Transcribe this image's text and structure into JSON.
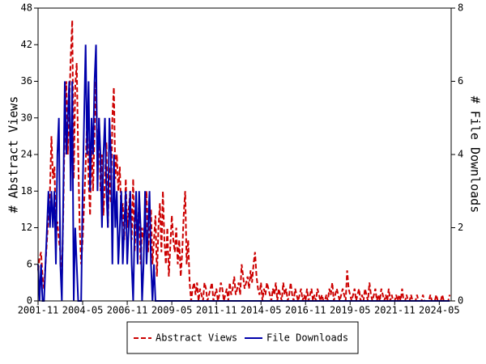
{
  "chart_data": {
    "type": "line",
    "x": [
      "2001-11",
      "2001-12",
      "2002-01",
      "2002-02",
      "2002-03",
      "2002-04",
      "2002-05",
      "2002-06",
      "2002-07",
      "2002-08",
      "2002-09",
      "2002-10",
      "2002-11",
      "2002-12",
      "2003-01",
      "2003-02",
      "2003-03",
      "2003-04",
      "2003-05",
      "2003-06",
      "2003-07",
      "2003-08",
      "2003-09",
      "2003-10",
      "2003-11",
      "2003-12",
      "2004-01",
      "2004-02",
      "2004-03",
      "2004-04",
      "2004-05",
      "2004-06",
      "2004-07",
      "2004-08",
      "2004-09",
      "2004-10",
      "2004-11",
      "2004-12",
      "2005-01",
      "2005-02",
      "2005-03",
      "2005-04",
      "2005-05",
      "2005-06",
      "2005-07",
      "2005-08",
      "2005-09",
      "2005-10",
      "2005-11",
      "2005-12",
      "2006-01",
      "2006-02",
      "2006-03",
      "2006-04",
      "2006-05",
      "2006-06",
      "2006-07",
      "2006-08",
      "2006-09",
      "2006-10",
      "2006-11",
      "2006-12",
      "2007-01",
      "2007-02",
      "2007-03",
      "2007-04",
      "2007-05",
      "2007-06",
      "2007-07",
      "2007-08",
      "2007-09",
      "2007-10",
      "2007-11",
      "2007-12",
      "2008-01",
      "2008-02",
      "2008-03",
      "2008-04",
      "2008-05",
      "2008-06",
      "2008-07",
      "2008-08",
      "2008-09",
      "2008-10",
      "2008-11",
      "2008-12",
      "2009-01",
      "2009-02",
      "2009-03",
      "2009-04",
      "2009-05",
      "2009-06",
      "2009-07",
      "2009-08",
      "2009-09",
      "2009-10",
      "2009-11",
      "2009-12",
      "2010-01",
      "2010-02",
      "2010-03",
      "2010-04",
      "2010-05",
      "2010-06",
      "2010-07",
      "2010-08",
      "2010-09",
      "2010-10",
      "2010-11",
      "2010-12",
      "2011-01",
      "2011-02",
      "2011-03",
      "2011-04",
      "2011-05",
      "2011-06",
      "2011-07",
      "2011-08",
      "2011-09",
      "2011-10",
      "2011-11",
      "2011-12",
      "2012-01",
      "2012-02",
      "2012-03",
      "2012-04",
      "2012-05",
      "2012-06",
      "2012-07",
      "2012-08",
      "2012-09",
      "2012-10",
      "2012-11",
      "2012-12",
      "2013-01",
      "2013-02",
      "2013-03",
      "2013-04",
      "2013-05",
      "2013-06",
      "2013-07",
      "2013-08",
      "2013-09",
      "2013-10",
      "2013-11",
      "2013-12",
      "2014-01",
      "2014-02",
      "2014-03",
      "2014-04",
      "2014-05",
      "2014-06",
      "2014-07",
      "2014-08",
      "2014-09",
      "2014-10",
      "2014-11",
      "2014-12",
      "2015-01",
      "2015-02",
      "2015-03",
      "2015-04",
      "2015-05",
      "2015-06",
      "2015-07",
      "2015-08",
      "2015-09",
      "2015-10",
      "2015-11",
      "2015-12",
      "2016-01",
      "2016-02",
      "2016-03",
      "2016-04",
      "2016-05",
      "2016-06",
      "2016-07",
      "2016-08",
      "2016-09",
      "2016-10",
      "2016-11",
      "2016-12",
      "2017-01",
      "2017-02",
      "2017-03",
      "2017-04",
      "2017-05",
      "2017-06",
      "2017-07",
      "2017-08",
      "2017-09",
      "2017-10",
      "2017-11",
      "2017-12",
      "2018-01",
      "2018-02",
      "2018-03",
      "2018-04",
      "2018-05",
      "2018-06",
      "2018-07",
      "2018-08",
      "2018-09",
      "2018-10",
      "2018-11",
      "2018-12",
      "2019-01",
      "2019-02",
      "2019-03",
      "2019-04",
      "2019-05",
      "2019-06",
      "2019-07",
      "2019-08",
      "2019-09",
      "2019-10",
      "2019-11",
      "2019-12",
      "2020-01",
      "2020-02",
      "2020-03",
      "2020-04",
      "2020-05",
      "2020-06",
      "2020-07",
      "2020-08",
      "2020-09",
      "2020-10",
      "2020-11",
      "2020-12",
      "2021-01",
      "2021-02",
      "2021-03",
      "2021-04",
      "2021-05",
      "2021-06",
      "2021-07",
      "2021-08",
      "2021-09",
      "2021-10",
      "2021-11",
      "2021-12",
      "2022-01",
      "2022-02",
      "2022-03",
      "2022-04",
      "2022-05",
      "2022-06",
      "2022-07",
      "2022-08",
      "2022-09",
      "2022-10",
      "2022-11",
      "2022-12",
      "2023-01",
      "2023-02",
      "2023-03",
      "2023-04",
      "2023-05",
      "2023-06",
      "2023-07",
      "2023-08",
      "2023-09",
      "2023-10",
      "2023-11",
      "2023-12",
      "2024-01",
      "2024-02",
      "2024-03",
      "2024-04",
      "2024-05",
      "2024-06",
      "2024-07",
      "2024-08",
      "2024-09",
      "2024-10",
      "2024-11",
      "2024-12"
    ],
    "xlim": [
      "2001-11",
      "2025-01"
    ],
    "xticks": [
      "2001-11",
      "2004-05",
      "2006-11",
      "2009-05",
      "2011-11",
      "2014-05",
      "2016-11",
      "2019-05",
      "2021-11",
      "2024-05"
    ],
    "ylabel": "# Abstract Views",
    "ylim": [
      0,
      48
    ],
    "yticks": [
      0,
      6,
      12,
      18,
      24,
      30,
      36,
      42,
      48
    ],
    "y2label": "# File Downloads",
    "y2lim": [
      0,
      8
    ],
    "y2ticks": [
      0,
      2,
      4,
      6,
      8
    ],
    "legend": "bottom",
    "series": [
      {
        "name": "Abstract Views",
        "color": "#cc0000",
        "dash": true,
        "values": [
          5,
          7,
          8,
          4,
          2,
          6,
          10,
          14,
          18,
          27,
          20,
          22,
          12,
          13,
          10,
          8,
          3,
          15,
          30,
          36,
          24,
          32,
          40,
          46,
          20,
          35,
          39,
          24,
          12,
          6,
          10,
          16,
          22,
          30,
          20,
          14,
          26,
          18,
          28,
          36,
          22,
          30,
          18,
          24,
          14,
          20,
          26,
          12,
          22,
          16,
          30,
          35,
          20,
          24,
          18,
          22,
          14,
          16,
          10,
          20,
          12,
          15,
          18,
          10,
          20,
          8,
          14,
          12,
          16,
          6,
          12,
          10,
          14,
          18,
          8,
          12,
          15,
          6,
          10,
          14,
          4,
          12,
          16,
          8,
          18,
          10,
          6,
          12,
          4,
          9,
          14,
          10,
          8,
          12,
          6,
          10,
          4,
          8,
          14,
          18,
          6,
          10,
          3,
          0,
          2,
          3,
          1,
          3,
          0,
          2,
          1,
          0,
          3,
          2,
          0,
          1,
          2,
          3,
          0,
          1,
          2,
          0,
          1,
          3,
          2,
          0,
          1,
          2,
          0,
          3,
          1,
          2,
          4,
          1,
          2,
          3,
          1,
          6,
          4,
          2,
          3,
          4,
          2,
          5,
          3,
          6,
          8,
          4,
          2,
          1,
          3,
          0,
          2,
          1,
          3,
          2,
          1,
          0,
          2,
          1,
          3,
          0,
          2,
          1,
          0,
          3,
          1,
          2,
          0,
          1,
          3,
          1,
          0,
          2,
          1,
          0,
          1,
          2,
          0,
          1,
          0,
          2,
          0,
          1,
          2,
          0,
          1,
          0,
          2,
          1,
          0,
          1,
          0,
          0,
          1,
          0,
          2,
          1,
          3,
          0,
          1,
          2,
          1,
          0,
          1,
          2,
          1,
          0,
          5,
          2,
          1,
          0,
          1,
          2,
          0,
          1,
          2,
          0,
          1,
          0,
          2,
          1,
          0,
          3,
          1,
          0,
          1,
          2,
          0,
          1,
          0,
          2,
          1,
          0,
          1,
          0,
          2,
          0,
          1,
          0,
          0,
          1,
          0,
          1,
          0,
          2,
          0,
          0,
          1,
          0,
          0,
          1,
          0,
          0,
          0,
          1,
          0,
          0,
          0,
          1,
          0,
          0,
          0,
          0,
          1,
          0,
          0,
          0,
          1,
          0,
          0,
          0,
          1,
          0,
          0,
          0,
          0,
          1
        ]
      },
      {
        "name": "File Downloads",
        "color": "#0000aa",
        "axis": "y2",
        "values": [
          1,
          0,
          1,
          0,
          0,
          1,
          2,
          3,
          2,
          3,
          2,
          3,
          1,
          4,
          5,
          1,
          0,
          3,
          6,
          4,
          5,
          6,
          3,
          6,
          0,
          2,
          1,
          0,
          0,
          0,
          3,
          5,
          7,
          4,
          6,
          3,
          5,
          4,
          6,
          7,
          3,
          5,
          4,
          2,
          4,
          5,
          3,
          2,
          5,
          4,
          1,
          4,
          2,
          3,
          1,
          2,
          3,
          1,
          2,
          3,
          1,
          2,
          3,
          1,
          0,
          2,
          3,
          1,
          3,
          2,
          0,
          1,
          3,
          1,
          2,
          3,
          1,
          0,
          1,
          0,
          0,
          0,
          0,
          0,
          0,
          0,
          0,
          0,
          0,
          0,
          0,
          0,
          0,
          0,
          0,
          0,
          0,
          0,
          0,
          0,
          0,
          0,
          0,
          0,
          0,
          0,
          0,
          0,
          0,
          0,
          0,
          0,
          0,
          0,
          0,
          0,
          0,
          0,
          0,
          0,
          0,
          0,
          0,
          0,
          0,
          0,
          0,
          0,
          0,
          0,
          0,
          0,
          0,
          0,
          0,
          0,
          0,
          0,
          0,
          0,
          0,
          0,
          0,
          0,
          0,
          0,
          0,
          0,
          0,
          0,
          0,
          0,
          0,
          0,
          0,
          0,
          0,
          0,
          0,
          0,
          0,
          0,
          0,
          0,
          0,
          0,
          0,
          0,
          0,
          0,
          0,
          0,
          0,
          0,
          0,
          0,
          0,
          0,
          0,
          0,
          0,
          0,
          0,
          0,
          0,
          0,
          0,
          0,
          0,
          0,
          0,
          0,
          0,
          0,
          0,
          0,
          0,
          0,
          0,
          0,
          0,
          0,
          0,
          0,
          0,
          0,
          0,
          0,
          0,
          0,
          0,
          0,
          0,
          0,
          0,
          0,
          0,
          0,
          0,
          0,
          0,
          0,
          0,
          0,
          0,
          0,
          0,
          0,
          0,
          0,
          0,
          0,
          0,
          0,
          0,
          0,
          0,
          0,
          0,
          0,
          0,
          0,
          0,
          0,
          0,
          0,
          0,
          0,
          0,
          0,
          0,
          0,
          0,
          0,
          0,
          0,
          0,
          0,
          0,
          0,
          0,
          0,
          0,
          0,
          0,
          0,
          0,
          0,
          0,
          0,
          0,
          0,
          0,
          0,
          0,
          0,
          0,
          0
        ]
      }
    ]
  }
}
